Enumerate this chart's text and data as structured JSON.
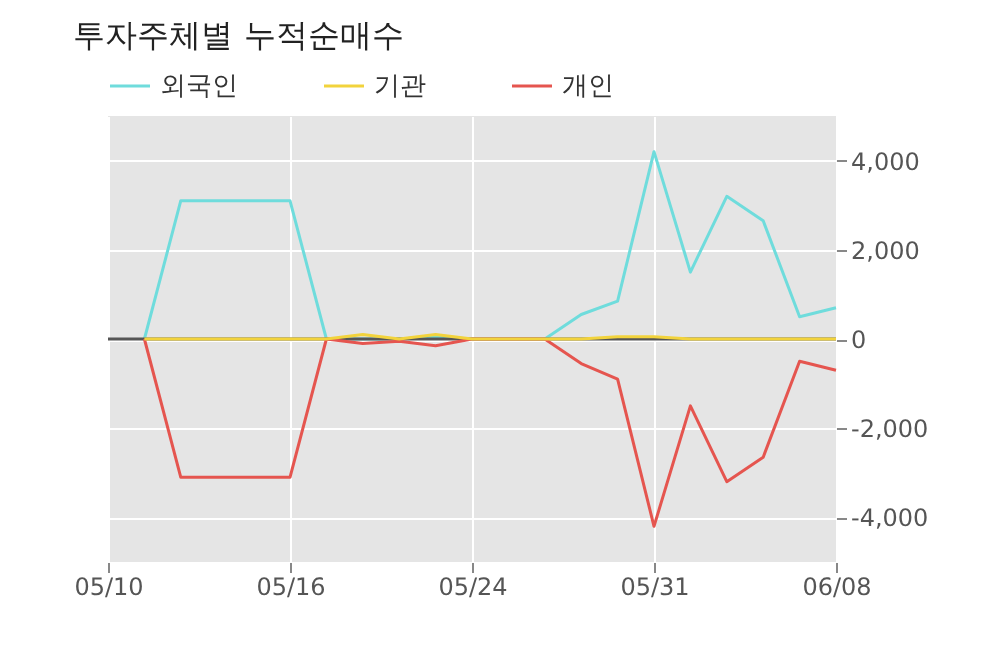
{
  "chart_data": {
    "type": "line",
    "title": "투자주체별 누적순매수",
    "categories": [
      "05/10",
      null,
      null,
      null,
      null,
      "05/16",
      null,
      null,
      null,
      null,
      "05/24",
      null,
      null,
      null,
      null,
      "05/31",
      null,
      null,
      null,
      null,
      "06/08"
    ],
    "series": [
      {
        "name": "외국인",
        "color": "#6fdcdc",
        "values": [
          null,
          0,
          3100,
          3100,
          3100,
          3100,
          0,
          0,
          0,
          50,
          0,
          0,
          0,
          550,
          850,
          4200,
          1500,
          3200,
          2650,
          500,
          700
        ]
      },
      {
        "name": "기관",
        "color": "#f2d33c",
        "values": [
          null,
          0,
          0,
          0,
          0,
          0,
          0,
          100,
          0,
          100,
          0,
          0,
          0,
          0,
          50,
          50,
          0,
          0,
          0,
          0,
          0
        ]
      },
      {
        "name": "개인",
        "color": "#e5554f",
        "values": [
          null,
          0,
          -3100,
          -3100,
          -3100,
          -3100,
          0,
          -100,
          -50,
          -150,
          0,
          0,
          0,
          -550,
          -900,
          -4200,
          -1500,
          -3200,
          -2650,
          -500,
          -700
        ]
      }
    ],
    "ylim": [
      -5000,
      5000
    ],
    "yticks": [
      {
        "value": -4000,
        "label": "-4,000"
      },
      {
        "value": -2000,
        "label": "-2,000"
      },
      0,
      {
        "value": 2000,
        "label": "2,000"
      },
      {
        "value": 4000,
        "label": "4,000"
      }
    ],
    "ref_lines": [
      {
        "axis": "y",
        "value": 0,
        "color": "#555555"
      }
    ],
    "grid": true,
    "legend": "top left",
    "marker": "none",
    "line_style": "solid"
  }
}
